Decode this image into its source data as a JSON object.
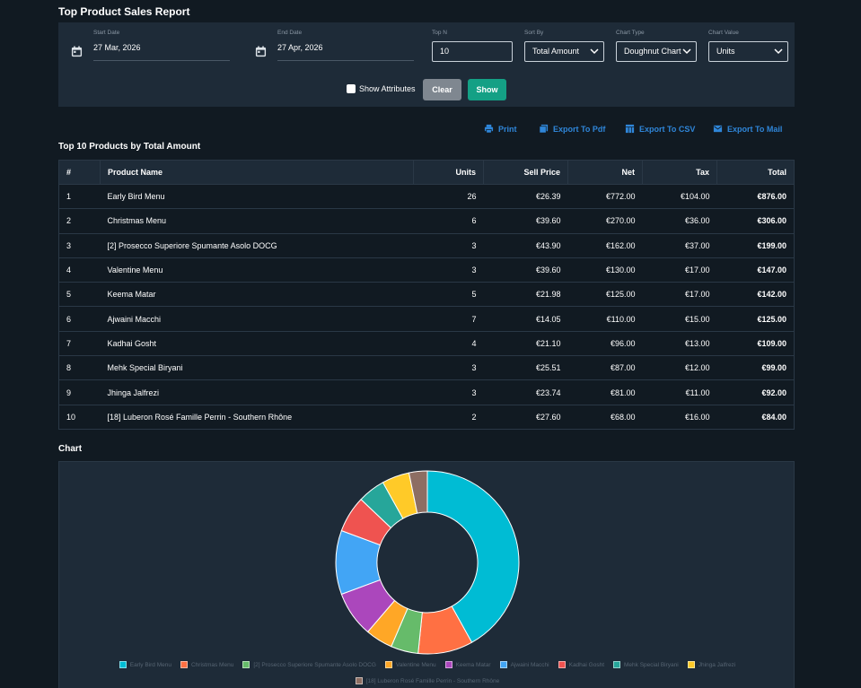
{
  "page": {
    "title": "Top Product Sales Report"
  },
  "filters": {
    "start_date": {
      "label": "Start Date",
      "value": "27 Mar, 2026"
    },
    "end_date": {
      "label": "End Date",
      "value": "27 Apr, 2026"
    },
    "top_n": {
      "label": "Top N",
      "value": "10"
    },
    "sort_by": {
      "label": "Sort By",
      "value": "Total Amount"
    },
    "chart_type": {
      "label": "Chart Type",
      "value": "Doughnut Chart"
    },
    "chart_value": {
      "label": "Chart Value",
      "value": "Units"
    },
    "show_attributes": {
      "label": "Show Attributes",
      "checked": false
    },
    "clear_label": "Clear",
    "show_label": "Show"
  },
  "exports": {
    "print": "Print",
    "pdf": "Export To Pdf",
    "csv": "Export To CSV",
    "mail": "Export To Mail"
  },
  "table": {
    "title": "Top 10 Products by Total Amount",
    "headers": [
      "#",
      "Product Name",
      "Units",
      "Sell Price",
      "Net",
      "Tax",
      "Total"
    ],
    "rows": [
      [
        "1",
        "Early Bird Menu",
        "26",
        "€26.39",
        "€772.00",
        "€104.00",
        "€876.00"
      ],
      [
        "2",
        "Christmas Menu",
        "6",
        "€39.60",
        "€270.00",
        "€36.00",
        "€306.00"
      ],
      [
        "3",
        "[2] Prosecco Superiore Spumante Asolo DOCG",
        "3",
        "€43.90",
        "€162.00",
        "€37.00",
        "€199.00"
      ],
      [
        "4",
        "Valentine Menu",
        "3",
        "€39.60",
        "€130.00",
        "€17.00",
        "€147.00"
      ],
      [
        "5",
        "Keema Matar",
        "5",
        "€21.98",
        "€125.00",
        "€17.00",
        "€142.00"
      ],
      [
        "6",
        "Ajwaini Macchi",
        "7",
        "€14.05",
        "€110.00",
        "€15.00",
        "€125.00"
      ],
      [
        "7",
        "Kadhai Gosht",
        "4",
        "€21.10",
        "€96.00",
        "€13.00",
        "€109.00"
      ],
      [
        "8",
        "Mehk Special Biryani",
        "3",
        "€25.51",
        "€87.00",
        "€12.00",
        "€99.00"
      ],
      [
        "9",
        "Jhinga Jalfrezi",
        "3",
        "€23.74",
        "€81.00",
        "€11.00",
        "€92.00"
      ],
      [
        "10",
        "[18] Luberon Rosé Famille Perrin - Southern Rhône",
        "2",
        "€27.60",
        "€68.00",
        "€16.00",
        "€84.00"
      ]
    ]
  },
  "chart_section_title": "Chart",
  "chart_data": {
    "type": "doughnut",
    "value_field": "Units",
    "categories": [
      "Early Bird Menu",
      "Christmas Menu",
      "[2] Prosecco Superiore Spumante Asolo DOCG",
      "Valentine Menu",
      "Keema Matar",
      "Ajwaini Macchi",
      "Kadhai Gosht",
      "Mehk Special Biryani",
      "Jhinga Jalfrezi",
      "[18] Luberon Rosé Famille Perrin - Southern Rhône"
    ],
    "values": [
      26,
      6,
      3,
      3,
      5,
      7,
      4,
      3,
      3,
      2
    ],
    "colors": [
      "#00bcd4",
      "#ff7043",
      "#66bb6a",
      "#ffa726",
      "#ab47bc",
      "#42a5f5",
      "#ef5350",
      "#26a69a",
      "#ffca28",
      "#8d6e63"
    ],
    "legend_position": "bottom"
  }
}
